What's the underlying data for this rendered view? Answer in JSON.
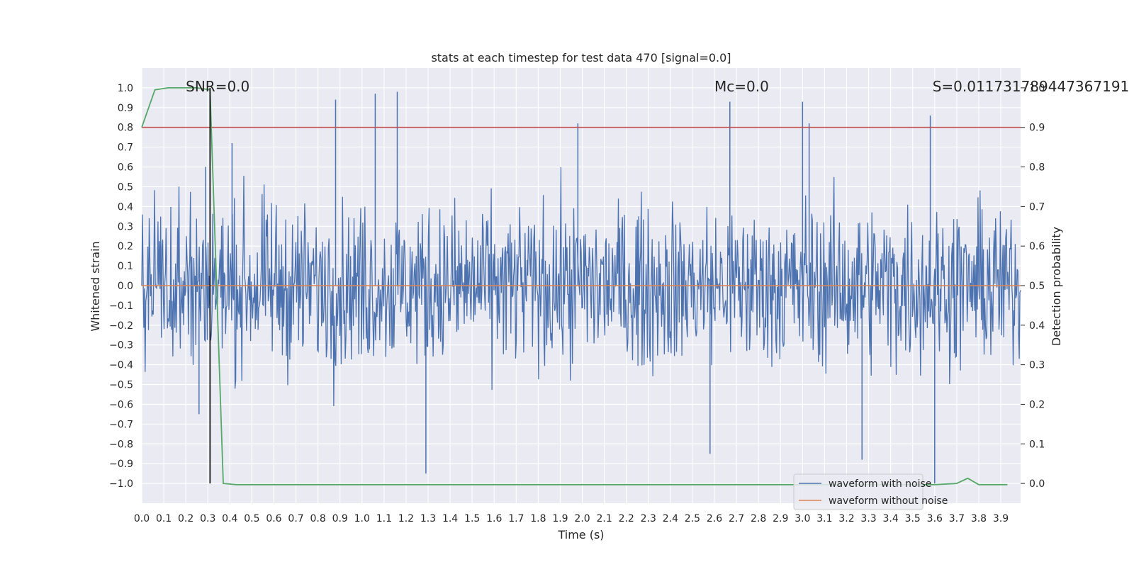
{
  "chart_data": {
    "type": "line",
    "title": "stats at each timestep for test data 470 [signal=0.0]",
    "xlabel": "Time (s)",
    "ylabel": "Whitened strain",
    "y2label": "Detection probability",
    "xlim": [
      0.0,
      3.99
    ],
    "ylim": [
      -1.1,
      1.1
    ],
    "y2lim": [
      -0.05,
      1.05
    ],
    "x_ticks": [
      "0.0",
      "0.1",
      "0.2",
      "0.3",
      "0.4",
      "0.5",
      "0.6",
      "0.7",
      "0.8",
      "0.9",
      "1.0",
      "1.1",
      "1.2",
      "1.3",
      "1.4",
      "1.5",
      "1.6",
      "1.7",
      "1.8",
      "1.9",
      "2.0",
      "2.1",
      "2.2",
      "2.3",
      "2.4",
      "2.5",
      "2.6",
      "2.7",
      "2.8",
      "2.9",
      "3.0",
      "3.1",
      "3.2",
      "3.3",
      "3.4",
      "3.5",
      "3.6",
      "3.7",
      "3.8",
      "3.9"
    ],
    "y_ticks": [
      "1.0",
      "0.9",
      "0.8",
      "0.7",
      "0.6",
      "0.5",
      "0.4",
      "0.3",
      "0.2",
      "0.1",
      "0.0",
      "−0.1",
      "−0.2",
      "−0.3",
      "−0.4",
      "−0.5",
      "−0.6",
      "−0.7",
      "−0.8",
      "−0.9",
      "−1.0"
    ],
    "y2_ticks": [
      "1.0",
      "0.9",
      "0.8",
      "0.7",
      "0.6",
      "0.5",
      "0.4",
      "0.3",
      "0.2",
      "0.1",
      "0.0"
    ],
    "grid": true,
    "legend_position": "bottom-right",
    "series": [
      {
        "name": "waveform with noise",
        "color": "#4c72b0",
        "axis": "left",
        "description": "dense noisy whitened strain, amplitude mostly within ±0.5",
        "noise_std": 0.2,
        "peaks": [
          {
            "x": 0.26,
            "y": -0.65
          },
          {
            "x": 0.29,
            "y": 0.6
          },
          {
            "x": 0.41,
            "y": 0.72
          },
          {
            "x": 0.88,
            "y": 0.94
          },
          {
            "x": 1.06,
            "y": 0.97
          },
          {
            "x": 1.16,
            "y": 0.98
          },
          {
            "x": 1.29,
            "y": -0.95
          },
          {
            "x": 1.98,
            "y": 0.82
          },
          {
            "x": 2.67,
            "y": 0.93
          },
          {
            "x": 2.58,
            "y": -0.85
          },
          {
            "x": 3.0,
            "y": 0.93
          },
          {
            "x": 3.03,
            "y": 0.82
          },
          {
            "x": 3.27,
            "y": -0.88
          },
          {
            "x": 3.58,
            "y": 0.86
          },
          {
            "x": 3.6,
            "y": -1.0
          }
        ]
      },
      {
        "name": "waveform without noise",
        "color": "#dd8452",
        "axis": "left",
        "x": [
          0.0,
          3.99
        ],
        "y": [
          0.0,
          0.0
        ]
      },
      {
        "name": "detection probability",
        "color": "#55a868",
        "axis": "right",
        "in_legend": false,
        "x": [
          0.0,
          0.06,
          0.12,
          0.2,
          0.25,
          0.31,
          0.37,
          0.43,
          0.5,
          3.6,
          3.7,
          3.75,
          3.8,
          3.86,
          3.93
        ],
        "y": [
          0.9,
          0.995,
          1.0,
          1.0,
          1.0,
          0.995,
          0.0,
          -0.003,
          -0.003,
          -0.003,
          0.0,
          0.013,
          -0.003,
          -0.003,
          -0.003
        ]
      }
    ],
    "threshold": {
      "axis": "right",
      "value": 0.9,
      "color": "#c44e52"
    },
    "marker": {
      "x": 0.31,
      "y_from": -1.0,
      "y_to": 1.0,
      "color": "#000000"
    },
    "annotations": [
      {
        "text": "SNR=0.0",
        "x": 0.2,
        "y": 1.0
      },
      {
        "text": "Mc=0.0",
        "x": 2.6,
        "y": 1.0
      },
      {
        "text": "S=0.011731789447367191",
        "x": 3.59,
        "y": 1.0
      }
    ]
  }
}
